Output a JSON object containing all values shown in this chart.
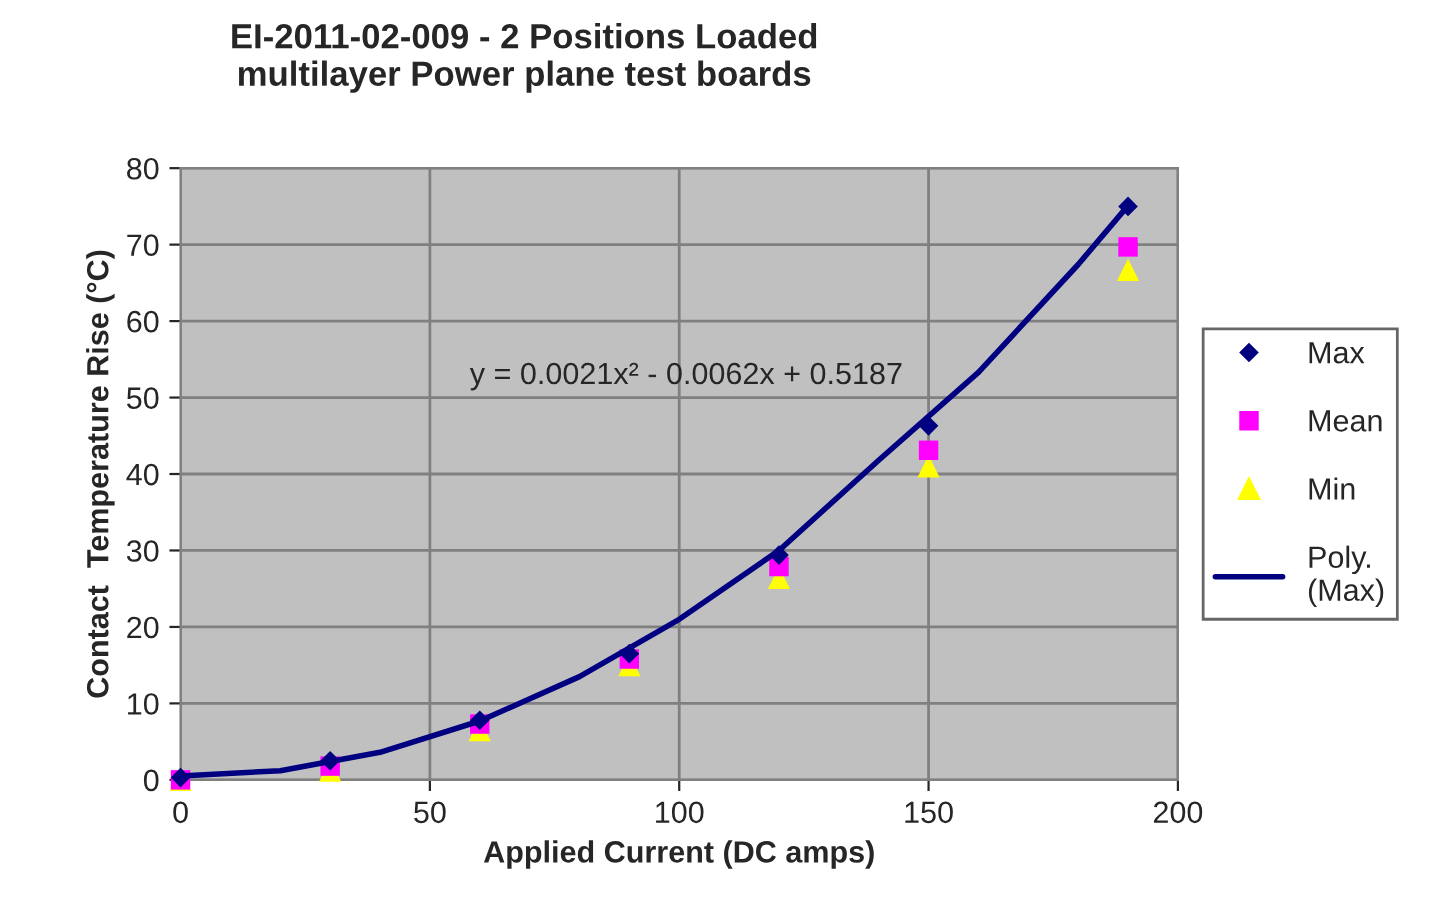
{
  "chart_data": {
    "type": "scatter",
    "title": "EI-2011-02-009 - 2 Positions Loaded\nmultilayer Power plane test boards",
    "xlabel": "Applied Current (DC amps)",
    "ylabel": "Contact  Temperature Rise (°C)",
    "x": [
      0,
      30,
      60,
      90,
      120,
      150,
      190
    ],
    "series": [
      {
        "name": "Max",
        "color": "#000080",
        "marker": "diamond",
        "values": [
          0.3,
          2.5,
          7.8,
          16.5,
          29.4,
          46.3,
          75.0
        ]
      },
      {
        "name": "Mean",
        "color": "#ff00ff",
        "marker": "square",
        "values": [
          0,
          1.8,
          7.3,
          15.8,
          27.9,
          43.1,
          69.7
        ]
      },
      {
        "name": "Min",
        "color": "#ffff00",
        "marker": "triangle",
        "values": [
          0,
          1.2,
          6.5,
          15.0,
          26.4,
          41.0,
          66.7
        ]
      },
      {
        "name": "Poly.\n(Max)",
        "type": "line",
        "color": "#000080",
        "marker": "none",
        "line_style": "solid",
        "x": [
          0,
          20,
          40,
          60,
          80,
          100,
          120,
          140,
          160,
          180,
          190
        ],
        "values": [
          0.5,
          1.2,
          3.6,
          7.7,
          13.5,
          21.0,
          30.0,
          41.8,
          53.3,
          67.4,
          75.1
        ]
      }
    ],
    "annotations": [
      "y = 0.0021x² - 0.0062x + 0.5187"
    ],
    "xlim": [
      0,
      200
    ],
    "xticks": [
      0,
      50,
      100,
      150,
      200
    ],
    "ylim": [
      0,
      80
    ],
    "yticks": [
      0,
      10,
      20,
      30,
      40,
      50,
      60,
      70,
      80
    ],
    "grid": true,
    "legend": "right"
  }
}
